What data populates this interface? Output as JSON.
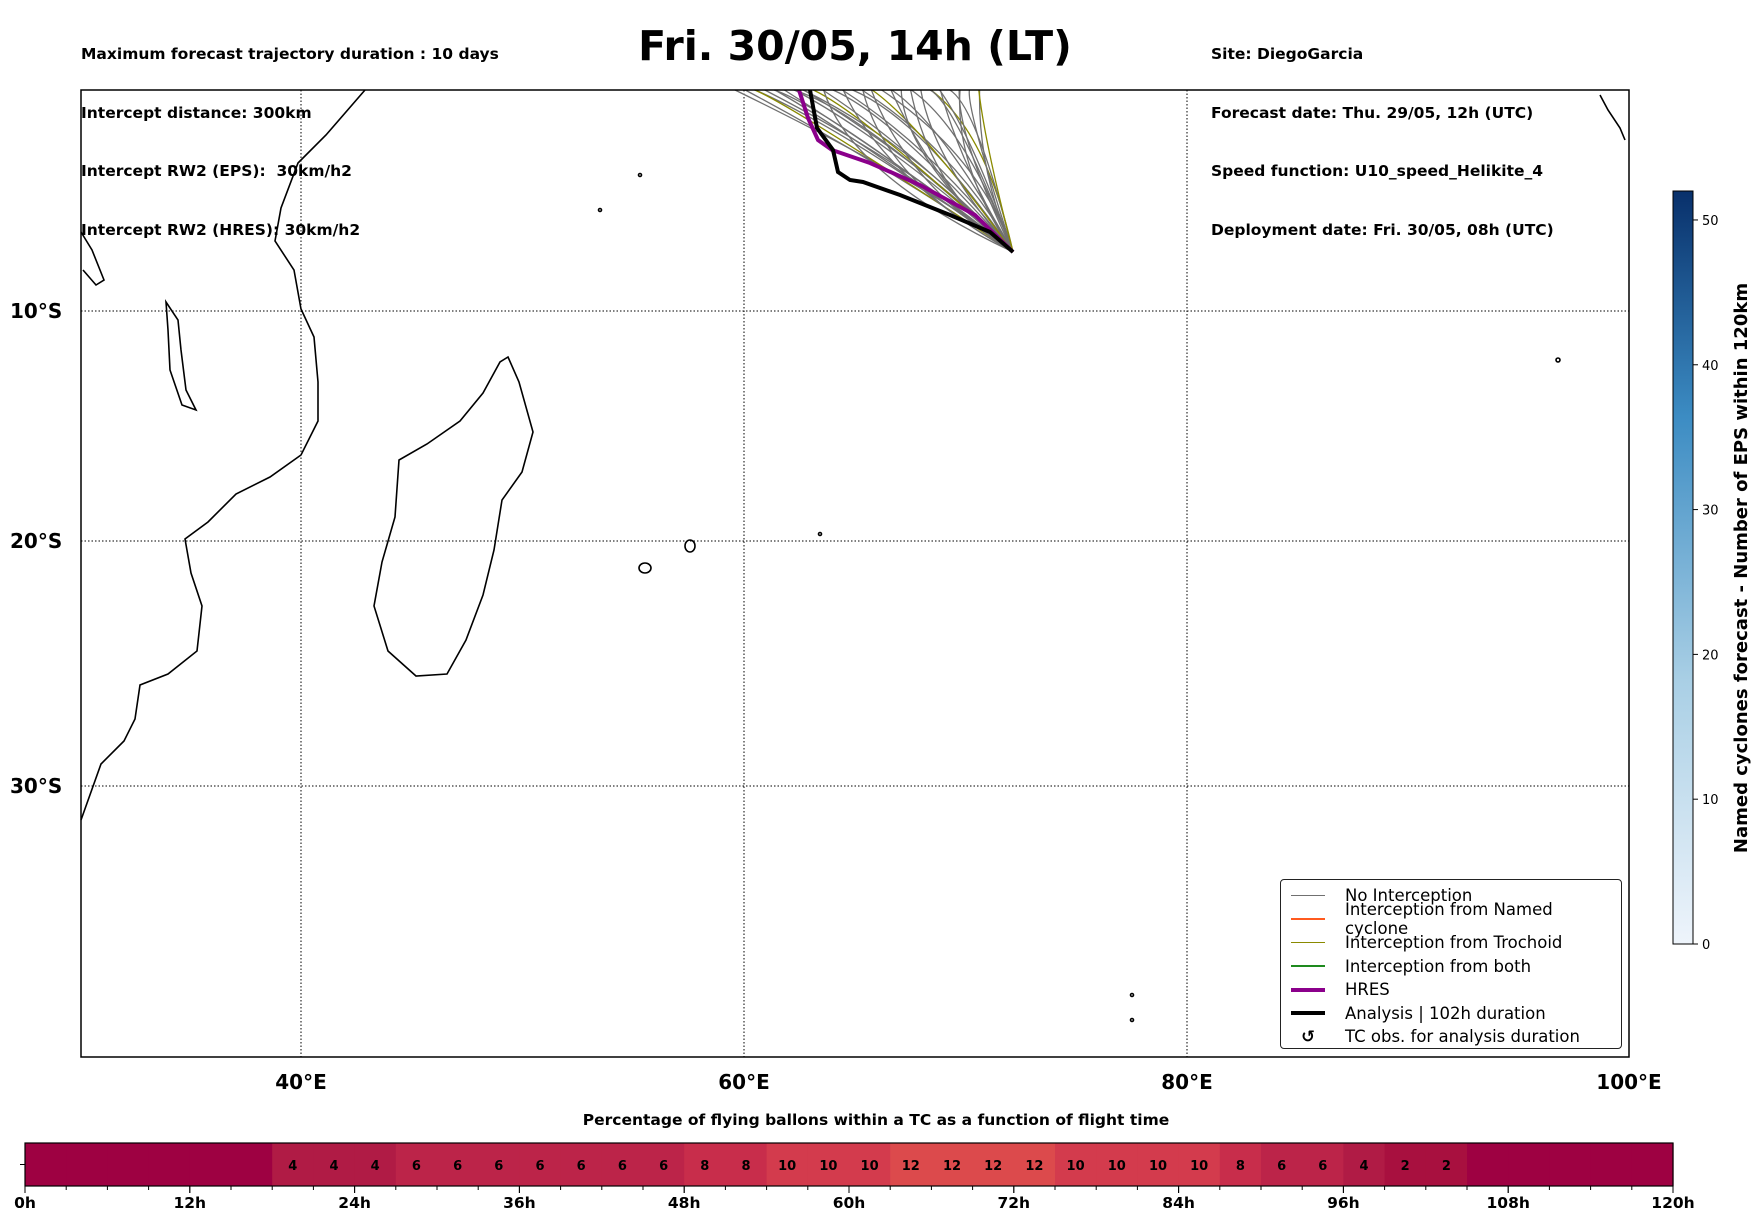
{
  "header": {
    "left": [
      "Maximum forecast trajectory duration : 10 days",
      "Intercept distance: 300km",
      "Intercept RW2 (EPS):  30km/h2",
      "Intercept RW2 (HRES): 30km/h2"
    ],
    "title": "Fri. 30/05, 14h (LT)",
    "right": [
      "Site: DiegoGarcia",
      "Forecast date: Thu. 29/05, 12h (UTC)",
      "Speed function: U10_speed_Helikite_4",
      "Deployment date: Fri. 30/05, 08h (UTC)"
    ]
  },
  "map": {
    "lat_labels": [
      "10°S",
      "20°S",
      "30°S"
    ],
    "lon_labels": [
      "40°E",
      "60°E",
      "80°E",
      "100°E"
    ]
  },
  "legend": {
    "items": [
      {
        "label": "No Interception",
        "color": "#707070"
      },
      {
        "label": "Interception from Named cyclone",
        "color": "#ff5a1f"
      },
      {
        "label": "Interception from Trochoid",
        "color": "#8a8a00"
      },
      {
        "label": "Interception from both",
        "color": "#1e8a1e"
      },
      {
        "label": "HRES",
        "color": "#8b008b"
      },
      {
        "label": "Analysis | 102h duration",
        "color": "#000000"
      },
      {
        "label": "TC obs. for analysis duration",
        "icon": "↺"
      }
    ]
  },
  "colorbar": {
    "label": "Named cyclones forecast - Number of EPS within 120km",
    "ticks": [
      "0",
      "10",
      "20",
      "30",
      "40",
      "50"
    ],
    "range": [
      0,
      52
    ]
  },
  "chart_data": {
    "type": "heatmap",
    "title": "Percentage of flying ballons within a TC as a function of flight time",
    "bin_hours": 3,
    "x_range": [
      0,
      120
    ],
    "tick_labels": [
      "0h",
      "12h",
      "24h",
      "36h",
      "48h",
      "60h",
      "72h",
      "84h",
      "96h",
      "108h",
      "120h"
    ],
    "values": [
      0,
      0,
      0,
      0,
      0,
      0,
      4,
      4,
      4,
      6,
      6,
      6,
      6,
      6,
      6,
      6,
      8,
      8,
      10,
      10,
      10,
      12,
      12,
      12,
      12,
      10,
      10,
      10,
      10,
      8,
      6,
      6,
      4,
      2,
      2,
      0,
      0,
      0,
      0,
      0
    ],
    "value_labels": [
      "",
      "",
      "",
      "",
      "",
      "",
      "4",
      "4",
      "4",
      "6",
      "6",
      "6",
      "6",
      "6",
      "6",
      "6",
      "8",
      "8",
      "10",
      "10",
      "10",
      "12",
      "12",
      "12",
      "12",
      "10",
      "10",
      "10",
      "10",
      "8",
      "6",
      "6",
      "4",
      "2",
      "2",
      "",
      "",
      "",
      "",
      ""
    ]
  }
}
